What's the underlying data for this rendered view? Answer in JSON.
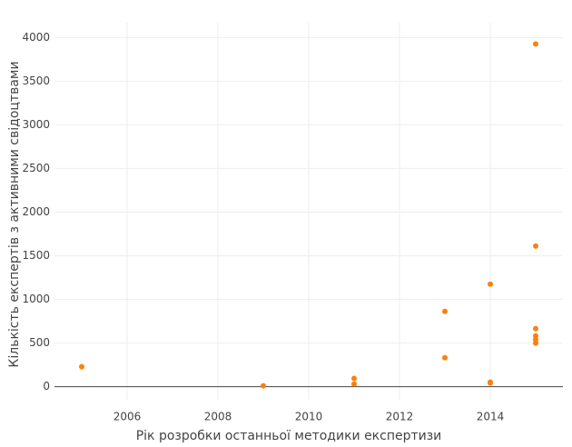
{
  "chart_data": {
    "type": "scatter",
    "xlabel": "Рік розробки останньої методики експертизи",
    "ylabel": "Кількість експертів з активними свідоцтвами",
    "series": [
      {
        "color": "#ff7f0e",
        "x": [
          2005,
          2009,
          2011,
          2011,
          2013,
          2013,
          2014,
          2014,
          2014,
          2015,
          2015,
          2015,
          2015,
          2015,
          2015
        ],
        "values": [
          229,
          10,
          94,
          31,
          862,
          332,
          1174,
          52,
          42,
          3927,
          1610,
          665,
          582,
          540,
          499
        ]
      }
    ],
    "xlim": [
      2004.4,
      2015.6
    ],
    "ylim": [
      -150,
      4170
    ],
    "xticks": [
      2006,
      2008,
      2010,
      2012,
      2014
    ],
    "yticks": [
      0,
      500,
      1000,
      1500,
      2000,
      2500,
      3000,
      3500,
      4000
    ],
    "grid": true
  }
}
